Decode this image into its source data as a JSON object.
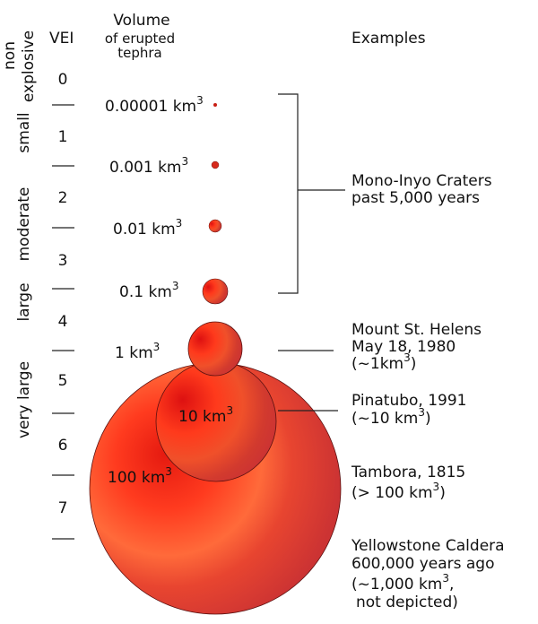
{
  "headers": {
    "vei": "VEI",
    "volume": "Volume",
    "volume_sub1": "of erupted",
    "volume_sub2": "tephra",
    "examples": "Examples"
  },
  "categories": [
    {
      "line1": "non",
      "line2": "explosive"
    },
    {
      "line1": "small",
      "line2": ""
    },
    {
      "line1": "moderate",
      "line2": ""
    },
    {
      "line1": "large",
      "line2": ""
    },
    {
      "line1": "very large",
      "line2": ""
    }
  ],
  "vei_levels": [
    "0",
    "1",
    "2",
    "3",
    "4",
    "5",
    "6",
    "7"
  ],
  "volumes": [
    {
      "value": "0.00001 km",
      "exp": "3"
    },
    {
      "value": "0.001 km",
      "exp": "3"
    },
    {
      "value": "0.01 km",
      "exp": "3"
    },
    {
      "value": "0.1 km",
      "exp": "3"
    },
    {
      "value": "1 km",
      "exp": "3"
    },
    {
      "value": "10 km",
      "exp": "3"
    },
    {
      "value": "100 km",
      "exp": "3"
    }
  ],
  "examples": {
    "mono_inyo": {
      "line1": "Mono-Inyo Craters",
      "line2": "past 5,000 years"
    },
    "st_helens": {
      "line1": "Mount St. Helens",
      "line2": "May 18, 1980",
      "line3_a": "(~1km",
      "line3_exp": "3",
      "line3_b": ")"
    },
    "pinatubo": {
      "line1": "Pinatubo, 1991",
      "line2_a": "(~10 km",
      "line2_exp": "3",
      "line2_b": ")"
    },
    "tambora": {
      "line1": "Tambora, 1815",
      "line2_a": "(> 100 km",
      "line2_exp": "3",
      "line2_b": ")"
    },
    "yellowstone": {
      "line1": "Yellowstone Caldera",
      "line2": "600,000 years ago",
      "line3_a": "(~1,000 km",
      "line3_exp": "3",
      "line3_b": ",",
      "line4": "not depicted)"
    }
  },
  "colors": {
    "bubble_dark": "#cc3333",
    "bubble_light": "#ff3b1f",
    "bubble_highlight": "#e01010"
  }
}
